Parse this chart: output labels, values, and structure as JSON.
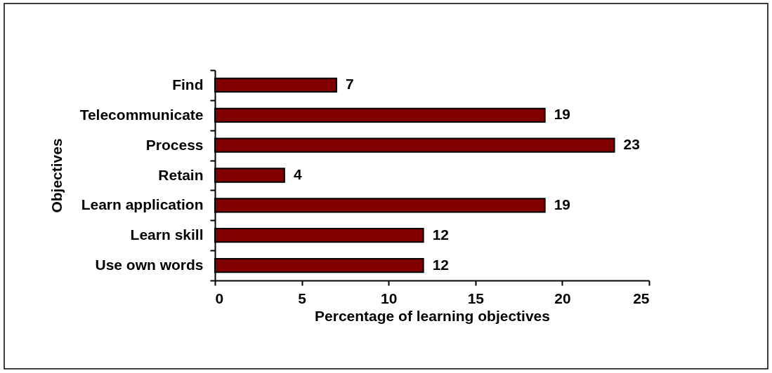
{
  "chart_data": {
    "type": "bar",
    "orientation": "horizontal",
    "xlabel": "Percentage of learning objectives",
    "ylabel": "Objectives",
    "categories": [
      "Find",
      "Telecommunicate",
      "Process",
      "Retain",
      "Learn application",
      "Learn skill",
      "Use own words"
    ],
    "values": [
      7,
      19,
      23,
      4,
      19,
      12,
      12
    ],
    "color": "#800000",
    "xlim": [
      0,
      25
    ],
    "xticks": [
      0,
      5,
      10,
      15,
      20,
      25
    ],
    "data_labels": true
  }
}
